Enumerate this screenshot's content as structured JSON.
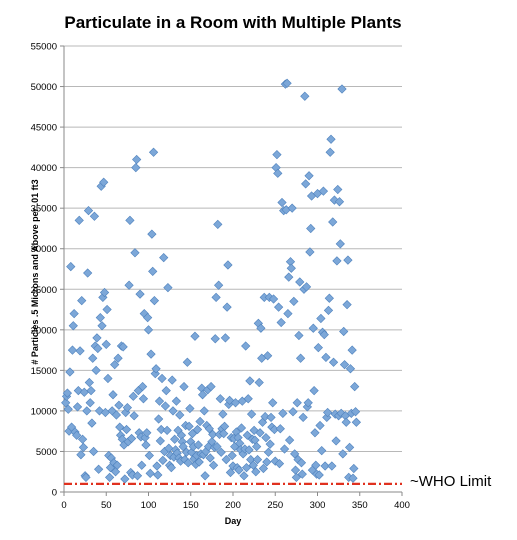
{
  "chart_data": {
    "type": "scatter",
    "title": "Particulate in a Room with Multiple Plants",
    "xlabel": "Day",
    "ylabel": "# Particles .5 Microns and Above per .01 ft3",
    "xlim": [
      0,
      400
    ],
    "ylim": [
      0,
      55000
    ],
    "x_ticks": [
      "0",
      "50",
      "100",
      "150",
      "200",
      "250",
      "300",
      "350",
      "400"
    ],
    "y_ticks": [
      "0",
      "5000",
      "10000",
      "15000",
      "20000",
      "25000",
      "30000",
      "35000",
      "40000",
      "45000",
      "50000",
      "55000"
    ],
    "grid": "horizontal",
    "marker": "diamond",
    "marker_color": "#7ca7d8",
    "reference_line": {
      "y": 1000,
      "label": "~WHO Limit",
      "color": "#e0311f",
      "style": "dash-dot"
    },
    "points": [
      [
        2,
        11000
      ],
      [
        3,
        11800
      ],
      [
        4,
        12200
      ],
      [
        5,
        10200
      ],
      [
        6,
        7500
      ],
      [
        7,
        14800
      ],
      [
        8,
        27800
      ],
      [
        9,
        8000
      ],
      [
        10,
        17500
      ],
      [
        11,
        20500
      ],
      [
        12,
        22000
      ],
      [
        13,
        7400
      ],
      [
        15,
        7000
      ],
      [
        16,
        10500
      ],
      [
        17,
        12500
      ],
      [
        18,
        33500
      ],
      [
        19,
        17400
      ],
      [
        20,
        4600
      ],
      [
        21,
        23600
      ],
      [
        22,
        6500
      ],
      [
        23,
        5500
      ],
      [
        24,
        12300
      ],
      [
        25,
        2000
      ],
      [
        26,
        1800
      ],
      [
        27,
        10000
      ],
      [
        28,
        27000
      ],
      [
        29,
        34700
      ],
      [
        30,
        13500
      ],
      [
        31,
        11000
      ],
      [
        32,
        12500
      ],
      [
        33,
        8500
      ],
      [
        34,
        16500
      ],
      [
        35,
        5000
      ],
      [
        36,
        34000
      ],
      [
        37,
        18000
      ],
      [
        38,
        15000
      ],
      [
        39,
        19000
      ],
      [
        40,
        17700
      ],
      [
        41,
        2800
      ],
      [
        42,
        10000
      ],
      [
        43,
        21500
      ],
      [
        44,
        37700
      ],
      [
        45,
        20500
      ],
      [
        46,
        24000
      ],
      [
        47,
        38200
      ],
      [
        48,
        24600
      ],
      [
        49,
        9800
      ],
      [
        50,
        18200
      ],
      [
        51,
        22500
      ],
      [
        52,
        14000
      ],
      [
        53,
        4500
      ],
      [
        54,
        1800
      ],
      [
        55,
        3000
      ],
      [
        56,
        4200
      ],
      [
        57,
        10000
      ],
      [
        58,
        12000
      ],
      [
        59,
        3600
      ],
      [
        60,
        15700
      ],
      [
        61,
        2500
      ],
      [
        62,
        9500
      ],
      [
        63,
        3300
      ],
      [
        64,
        16500
      ],
      [
        65,
        10700
      ],
      [
        66,
        8000
      ],
      [
        67,
        7000
      ],
      [
        68,
        18000
      ],
      [
        69,
        6500
      ],
      [
        70,
        17900
      ],
      [
        71,
        5800
      ],
      [
        72,
        1600
      ],
      [
        73,
        9800
      ],
      [
        74,
        7700
      ],
      [
        75,
        10400
      ],
      [
        76,
        6200
      ],
      [
        77,
        25500
      ],
      [
        78,
        33500
      ],
      [
        79,
        2400
      ],
      [
        80,
        6600
      ],
      [
        81,
        2100
      ],
      [
        82,
        11800
      ],
      [
        83,
        9400
      ],
      [
        84,
        29500
      ],
      [
        85,
        40000
      ],
      [
        86,
        41000
      ],
      [
        87,
        2000
      ],
      [
        88,
        12500
      ],
      [
        89,
        7300
      ],
      [
        90,
        24400
      ],
      [
        91,
        6800
      ],
      [
        92,
        3300
      ],
      [
        93,
        13000
      ],
      [
        94,
        11500
      ],
      [
        95,
        22000
      ],
      [
        96,
        6700
      ],
      [
        97,
        5800
      ],
      [
        98,
        7300
      ],
      [
        99,
        21500
      ],
      [
        100,
        20000
      ],
      [
        101,
        4500
      ],
      [
        102,
        2300
      ],
      [
        103,
        17000
      ],
      [
        104,
        31800
      ],
      [
        105,
        27200
      ],
      [
        106,
        41900
      ],
      [
        107,
        23600
      ],
      [
        108,
        14600
      ],
      [
        109,
        15200
      ],
      [
        110,
        3200
      ],
      [
        111,
        2100
      ],
      [
        112,
        9000
      ],
      [
        113,
        11200
      ],
      [
        114,
        6300
      ],
      [
        115,
        7700
      ],
      [
        116,
        14000
      ],
      [
        117,
        3900
      ],
      [
        118,
        28900
      ],
      [
        119,
        5000
      ],
      [
        120,
        10600
      ],
      [
        121,
        12500
      ],
      [
        122,
        7600
      ],
      [
        123,
        25200
      ],
      [
        124,
        5400
      ],
      [
        125,
        3300
      ],
      [
        126,
        4500
      ],
      [
        127,
        3000
      ],
      [
        128,
        13800
      ],
      [
        129,
        10000
      ],
      [
        130,
        4300
      ],
      [
        131,
        6500
      ],
      [
        132,
        5200
      ],
      [
        133,
        11200
      ],
      [
        134,
        4800
      ],
      [
        135,
        7600
      ],
      [
        136,
        4200
      ],
      [
        137,
        9500
      ],
      [
        138,
        3800
      ],
      [
        139,
        7000
      ],
      [
        140,
        6200
      ],
      [
        141,
        5600
      ],
      [
        142,
        13000
      ],
      [
        143,
        4000
      ],
      [
        144,
        8200
      ],
      [
        145,
        4900
      ],
      [
        146,
        16000
      ],
      [
        147,
        3600
      ],
      [
        148,
        8100
      ],
      [
        149,
        10300
      ],
      [
        150,
        6200
      ],
      [
        151,
        4900
      ],
      [
        152,
        7200
      ],
      [
        153,
        5600
      ],
      [
        154,
        4100
      ],
      [
        155,
        19200
      ],
      [
        156,
        3400
      ],
      [
        157,
        4500
      ],
      [
        158,
        7700
      ],
      [
        159,
        5800
      ],
      [
        160,
        3700
      ],
      [
        161,
        8700
      ],
      [
        162,
        4700
      ],
      [
        163,
        12800
      ],
      [
        164,
        12000
      ],
      [
        165,
        4600
      ],
      [
        166,
        10000
      ],
      [
        167,
        2000
      ],
      [
        168,
        5000
      ],
      [
        169,
        8200
      ],
      [
        170,
        12600
      ],
      [
        171,
        5600
      ],
      [
        172,
        7800
      ],
      [
        173,
        4200
      ],
      [
        174,
        13000
      ],
      [
        175,
        6200
      ],
      [
        176,
        7100
      ],
      [
        177,
        3300
      ],
      [
        178,
        5500
      ],
      [
        179,
        18900
      ],
      [
        180,
        24000
      ],
      [
        181,
        5600
      ],
      [
        182,
        33000
      ],
      [
        183,
        25500
      ],
      [
        184,
        7100
      ],
      [
        185,
        11500
      ],
      [
        186,
        4900
      ],
      [
        187,
        7800
      ],
      [
        188,
        9600
      ],
      [
        189,
        7200
      ],
      [
        190,
        8100
      ],
      [
        191,
        19000
      ],
      [
        192,
        4000
      ],
      [
        193,
        22800
      ],
      [
        194,
        28000
      ],
      [
        195,
        10800
      ],
      [
        196,
        11300
      ],
      [
        197,
        2400
      ],
      [
        198,
        6700
      ],
      [
        199,
        4500
      ],
      [
        200,
        3200
      ],
      [
        201,
        6600
      ],
      [
        202,
        5600
      ],
      [
        203,
        11000
      ],
      [
        204,
        7400
      ],
      [
        205,
        3000
      ],
      [
        206,
        6700
      ],
      [
        207,
        2700
      ],
      [
        208,
        6000
      ],
      [
        209,
        5200
      ],
      [
        210,
        7900
      ],
      [
        211,
        11200
      ],
      [
        212,
        4700
      ],
      [
        213,
        2000
      ],
      [
        214,
        5300
      ],
      [
        215,
        18000
      ],
      [
        216,
        3000
      ],
      [
        217,
        7000
      ],
      [
        218,
        11500
      ],
      [
        219,
        5200
      ],
      [
        220,
        13700
      ],
      [
        221,
        4000
      ],
      [
        222,
        9600
      ],
      [
        223,
        6500
      ],
      [
        224,
        3300
      ],
      [
        225,
        7600
      ],
      [
        226,
        6400
      ],
      [
        227,
        2500
      ],
      [
        228,
        5600
      ],
      [
        229,
        4000
      ],
      [
        230,
        20800
      ],
      [
        231,
        13500
      ],
      [
        232,
        7300
      ],
      [
        233,
        20200
      ],
      [
        234,
        16500
      ],
      [
        235,
        8600
      ],
      [
        236,
        2900
      ],
      [
        237,
        24000
      ],
      [
        238,
        9300
      ],
      [
        239,
        6700
      ],
      [
        240,
        3700
      ],
      [
        241,
        16800
      ],
      [
        242,
        4900
      ],
      [
        243,
        24000
      ],
      [
        244,
        5900
      ],
      [
        245,
        9200
      ],
      [
        246,
        8000
      ],
      [
        247,
        11000
      ],
      [
        248,
        23800
      ],
      [
        249,
        7700
      ],
      [
        250,
        3800
      ],
      [
        251,
        40000
      ],
      [
        252,
        41600
      ],
      [
        253,
        39300
      ],
      [
        254,
        22800
      ],
      [
        255,
        3500
      ],
      [
        256,
        7800
      ],
      [
        257,
        20900
      ],
      [
        258,
        35700
      ],
      [
        259,
        9700
      ],
      [
        260,
        34700
      ],
      [
        261,
        5300
      ],
      [
        262,
        50300
      ],
      [
        263,
        34800
      ],
      [
        264,
        50400
      ],
      [
        265,
        22000
      ],
      [
        266,
        26500
      ],
      [
        267,
        6400
      ],
      [
        268,
        28400
      ],
      [
        269,
        27600
      ],
      [
        270,
        35000
      ],
      [
        271,
        9900
      ],
      [
        272,
        23500
      ],
      [
        273,
        4700
      ],
      [
        274,
        2700
      ],
      [
        275,
        1800
      ],
      [
        276,
        11000
      ],
      [
        277,
        4000
      ],
      [
        278,
        19300
      ],
      [
        279,
        25900
      ],
      [
        280,
        16500
      ],
      [
        281,
        3600
      ],
      [
        282,
        2200
      ],
      [
        283,
        9200
      ],
      [
        284,
        25000
      ],
      [
        285,
        48800
      ],
      [
        286,
        38000
      ],
      [
        287,
        25300
      ],
      [
        288,
        10500
      ],
      [
        289,
        11000
      ],
      [
        290,
        39000
      ],
      [
        291,
        29600
      ],
      [
        292,
        32500
      ],
      [
        293,
        36500
      ],
      [
        294,
        2700
      ],
      [
        295,
        20200
      ],
      [
        296,
        12500
      ],
      [
        297,
        7300
      ],
      [
        298,
        3300
      ],
      [
        299,
        2200
      ],
      [
        300,
        36800
      ],
      [
        301,
        17800
      ],
      [
        302,
        2100
      ],
      [
        303,
        8200
      ],
      [
        304,
        21400
      ],
      [
        305,
        5100
      ],
      [
        306,
        19700
      ],
      [
        307,
        37100
      ],
      [
        308,
        19400
      ],
      [
        309,
        3200
      ],
      [
        310,
        16600
      ],
      [
        311,
        9200
      ],
      [
        312,
        9800
      ],
      [
        313,
        22400
      ],
      [
        314,
        23900
      ],
      [
        315,
        41900
      ],
      [
        316,
        43500
      ],
      [
        317,
        3200
      ],
      [
        318,
        33300
      ],
      [
        319,
        16000
      ],
      [
        320,
        36000
      ],
      [
        321,
        9600
      ],
      [
        322,
        6300
      ],
      [
        323,
        28500
      ],
      [
        324,
        37300
      ],
      [
        325,
        9400
      ],
      [
        326,
        35800
      ],
      [
        327,
        30600
      ],
      [
        328,
        9700
      ],
      [
        329,
        49700
      ],
      [
        330,
        4700
      ],
      [
        331,
        19800
      ],
      [
        332,
        15700
      ],
      [
        333,
        9400
      ],
      [
        334,
        8600
      ],
      [
        335,
        23100
      ],
      [
        336,
        28600
      ],
      [
        337,
        1800
      ],
      [
        338,
        5500
      ],
      [
        339,
        15200
      ],
      [
        340,
        9700
      ],
      [
        341,
        17500
      ],
      [
        342,
        1700
      ],
      [
        343,
        2900
      ],
      [
        344,
        13000
      ],
      [
        345,
        9900
      ],
      [
        346,
        8600
      ]
    ]
  }
}
